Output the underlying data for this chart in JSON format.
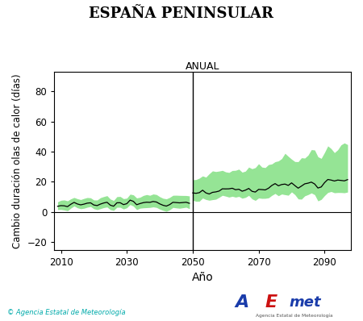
{
  "title": "ESPAÑA PENINSULAR",
  "subtitle": "ANUAL",
  "xlabel": "Año",
  "ylabel": "Cambio duración olas de calor (días)",
  "xlim": [
    2008,
    2098
  ],
  "ylim": [
    -25,
    93
  ],
  "yticks": [
    -20,
    0,
    20,
    40,
    60,
    80
  ],
  "xticks": [
    2010,
    2030,
    2050,
    2070,
    2090
  ],
  "vline_x": 2050,
  "hline_y": 0,
  "period1_start": 2009,
  "period1_end": 2049,
  "period2_start": 2050,
  "period2_end": 2097,
  "mean_color": "#000000",
  "band_color": "#5cd65c",
  "band_alpha": 0.65,
  "background_color": "#ffffff",
  "copyright_text": "© Agencia Estatal de Meteorología",
  "copyright_color": "#00aaaa",
  "title_fontsize": 13,
  "subtitle_fontsize": 9,
  "axis_label_fontsize": 9,
  "tick_fontsize": 8.5
}
